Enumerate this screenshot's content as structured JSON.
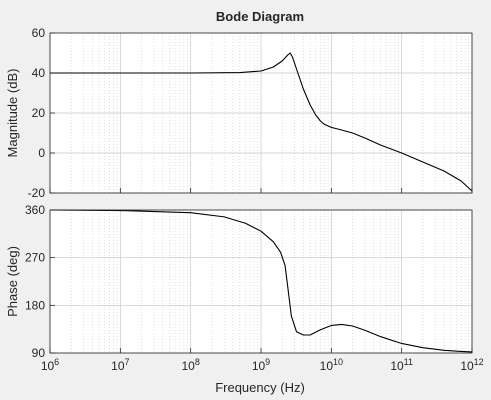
{
  "chart_data": {
    "type": "line",
    "title": "Bode Diagram",
    "xlabel": "Frequency  (Hz)",
    "x_scale": "log",
    "xlim": [
      1000000.0,
      1000000000000.0
    ],
    "x_tick_exponents": [
      "6",
      "7",
      "8",
      "9",
      "10",
      "11",
      "12"
    ],
    "x_tick_base": "10",
    "grid": true,
    "subplots": [
      {
        "name": "magnitude",
        "ylabel": "Magnitude (dB)",
        "ylim": [
          -20,
          60
        ],
        "yticks": [
          -20,
          0,
          20,
          40,
          60
        ],
        "series": [
          {
            "points": [
              [
                1000000.0,
                40
              ],
              [
                10000000.0,
                40
              ],
              [
                100000000.0,
                40
              ],
              [
                500000000.0,
                40.2
              ],
              [
                1000000000.0,
                41
              ],
              [
                1500000000.0,
                43
              ],
              [
                2000000000.0,
                46
              ],
              [
                2400000000.0,
                49
              ],
              [
                2600000000.0,
                50
              ],
              [
                2800000000.0,
                48
              ],
              [
                3200000000.0,
                42
              ],
              [
                4000000000.0,
                32
              ],
              [
                5000000000.0,
                24
              ],
              [
                6000000000.0,
                19
              ],
              [
                7000000000.0,
                16
              ],
              [
                8000000000.0,
                14.3
              ],
              [
                10000000000.0,
                12.8
              ],
              [
                14000000000.0,
                11.5
              ],
              [
                20000000000.0,
                10
              ],
              [
                30000000000.0,
                7.5
              ],
              [
                50000000000.0,
                4
              ],
              [
                100000000000.0,
                0
              ],
              [
                200000000000.0,
                -4.5
              ],
              [
                400000000000.0,
                -9
              ],
              [
                700000000000.0,
                -14
              ],
              [
                1000000000000.0,
                -19
              ]
            ]
          }
        ]
      },
      {
        "name": "phase",
        "ylabel": "Phase (deg)",
        "ylim": [
          90,
          360
        ],
        "yticks": [
          90,
          180,
          270,
          360
        ],
        "series": [
          {
            "points": [
              [
                1000000.0,
                360
              ],
              [
                10000000.0,
                359
              ],
              [
                100000000.0,
                355
              ],
              [
                300000000.0,
                347
              ],
              [
                600000000.0,
                335
              ],
              [
                1000000000.0,
                320
              ],
              [
                1500000000.0,
                300
              ],
              [
                1900000000.0,
                280
              ],
              [
                2200000000.0,
                255
              ],
              [
                2400000000.0,
                215
              ],
              [
                2700000000.0,
                160
              ],
              [
                3200000000.0,
                130
              ],
              [
                4000000000.0,
                124
              ],
              [
                5000000000.0,
                124
              ],
              [
                7000000000.0,
                134
              ],
              [
                10000000000.0,
                142
              ],
              [
                14000000000.0,
                144
              ],
              [
                20000000000.0,
                141
              ],
              [
                30000000000.0,
                133
              ],
              [
                50000000000.0,
                121
              ],
              [
                100000000000.0,
                108
              ],
              [
                200000000000.0,
                100
              ],
              [
                400000000000.0,
                95
              ],
              [
                700000000000.0,
                93
              ],
              [
                1000000000000.0,
                92
              ]
            ]
          }
        ]
      }
    ]
  }
}
